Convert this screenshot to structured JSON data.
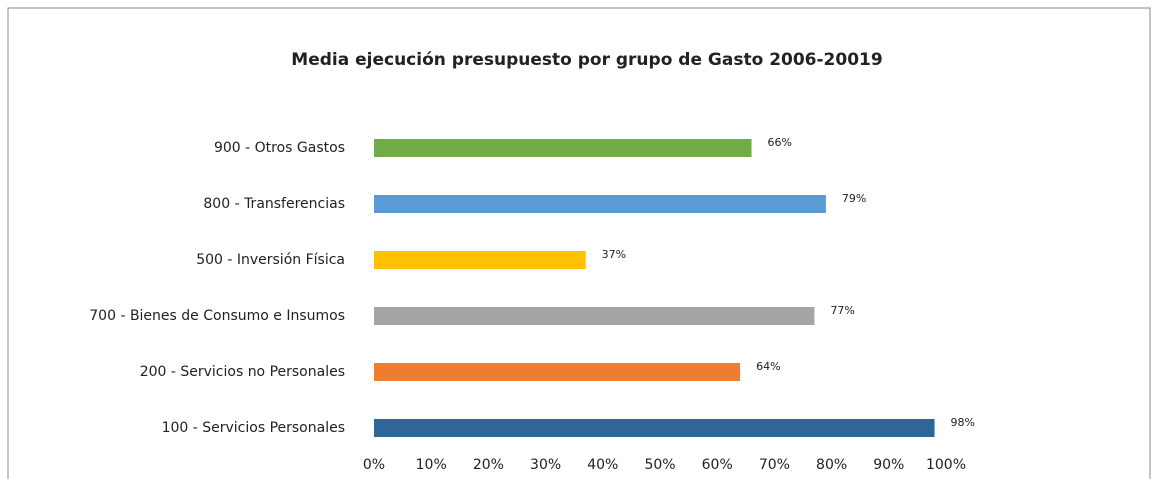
{
  "chart_data": {
    "type": "barh",
    "title": "Media ejecución presupuesto por grupo de Gasto 2006-20019",
    "categories": [
      "900 - Otros Gastos",
      "800 - Transferencias",
      "500 - Inversión Física",
      "700 - Bienes de Consumo e Insumos",
      "200 - Servicios no Personales",
      "100 - Servicios Personales"
    ],
    "values": [
      66,
      79,
      37,
      77,
      64,
      98
    ],
    "value_labels": [
      "66%",
      "79%",
      "37%",
      "77%",
      "64%",
      "98%"
    ],
    "colors": [
      "#70ad47",
      "#5b9bd5",
      "#ffc000",
      "#a5a5a5",
      "#ed7d31",
      "#2e6699"
    ],
    "xlim": [
      0,
      100
    ],
    "xticks": [
      {
        "value": 0,
        "label": "0%"
      },
      {
        "value": 10,
        "label": "10%"
      },
      {
        "value": 20,
        "label": "20%"
      },
      {
        "value": 30,
        "label": "30%"
      },
      {
        "value": 40,
        "label": "40%"
      },
      {
        "value": 50,
        "label": "50%"
      },
      {
        "value": 60,
        "label": "60%"
      },
      {
        "value": 70,
        "label": "70%"
      },
      {
        "value": 80,
        "label": "80%"
      },
      {
        "value": 90,
        "label": "90%"
      },
      {
        "value": 100,
        "label": "100%"
      }
    ],
    "grid": false
  }
}
